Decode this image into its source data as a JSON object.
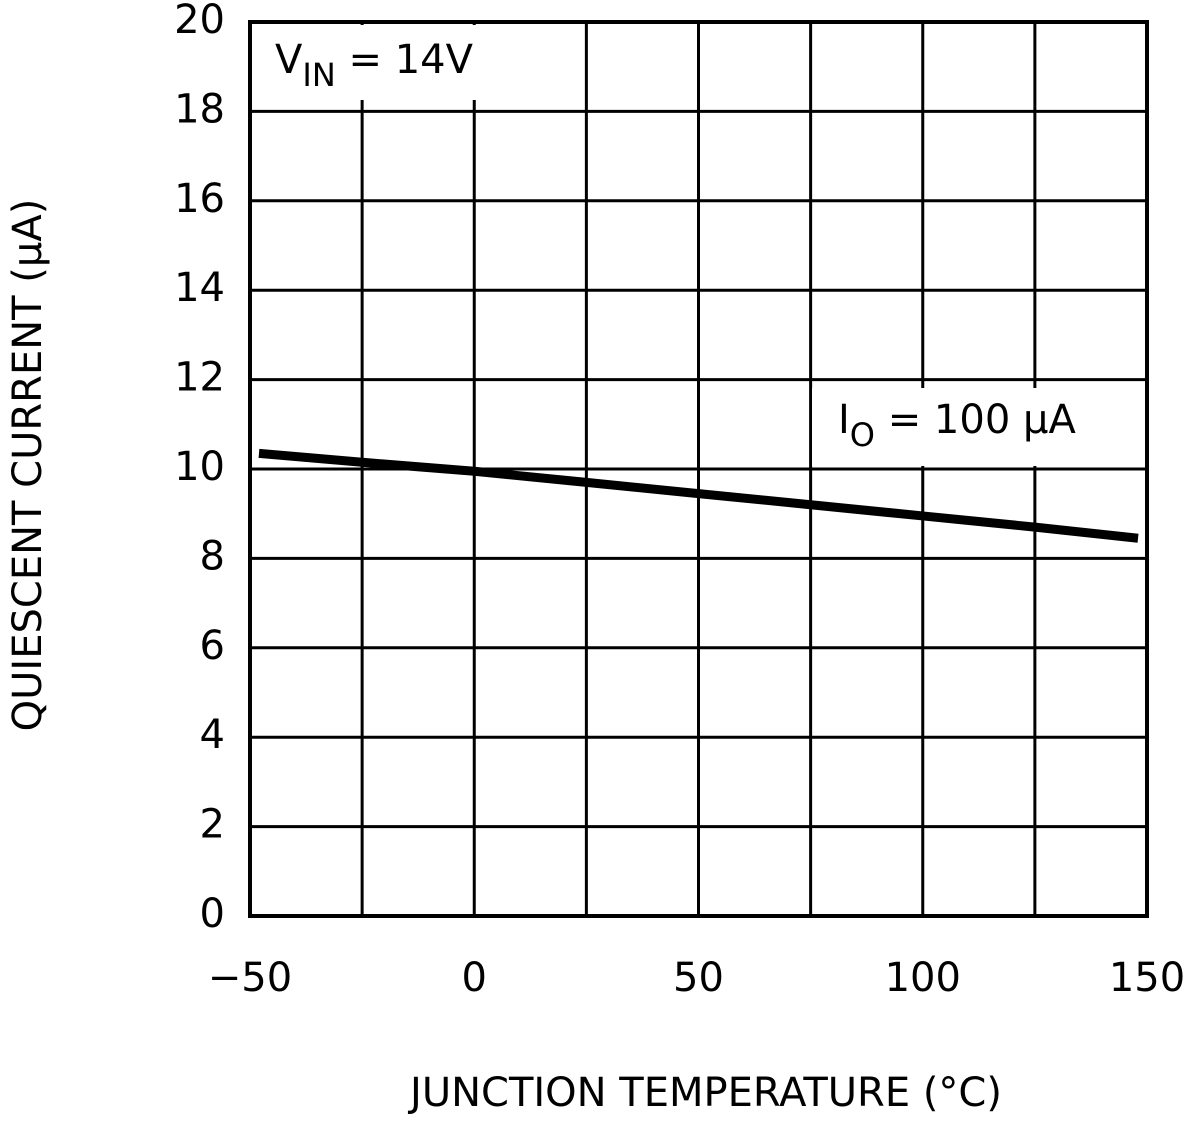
{
  "chart_data": {
    "type": "line",
    "x_label": "JUNCTION TEMPERATURE (°C)",
    "y_label": "QUIESCENT CURRENT (μA)",
    "x": [
      -48,
      -25,
      0,
      25,
      50,
      75,
      100,
      125,
      148
    ],
    "series": [
      {
        "name": "IO = 100 μA",
        "color": "#000000",
        "values": [
          10.35,
          10.15,
          9.95,
          9.7,
          9.45,
          9.2,
          8.95,
          8.7,
          8.45
        ]
      }
    ],
    "xlim": [
      -50,
      150
    ],
    "xticks": [
      {
        "value": -50,
        "label": "−50"
      },
      0,
      50,
      100,
      150
    ],
    "xminorgrid": [
      -25,
      25,
      75,
      125
    ],
    "ylim": [
      0,
      20
    ],
    "yticks": [
      0,
      2,
      4,
      6,
      8,
      10,
      12,
      14,
      16,
      18,
      20
    ],
    "grid": true,
    "annotations": [
      {
        "main": "V",
        "sub": "IN",
        "rest": " = 14V"
      },
      {
        "main": "I",
        "sub": "O",
        "rest": " = 100 μA"
      }
    ]
  }
}
